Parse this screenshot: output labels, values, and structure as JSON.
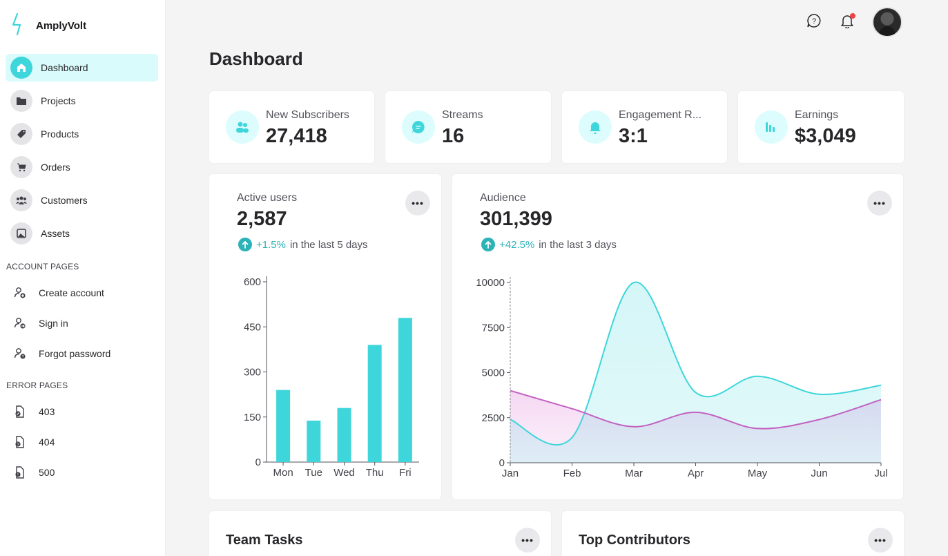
{
  "brand": {
    "name": "AmplyVolt"
  },
  "sidebar": {
    "items": [
      {
        "label": "Dashboard",
        "icon": "home-icon",
        "active": true
      },
      {
        "label": "Projects",
        "icon": "folder-icon"
      },
      {
        "label": "Products",
        "icon": "tag-icon"
      },
      {
        "label": "Orders",
        "icon": "cart-icon"
      },
      {
        "label": "Customers",
        "icon": "users-icon"
      },
      {
        "label": "Assets",
        "icon": "image-icon"
      }
    ],
    "account_title": "ACCOUNT PAGES",
    "account_items": [
      {
        "label": "Create account",
        "icon": "user-plus-icon"
      },
      {
        "label": "Sign in",
        "icon": "user-arrow-icon"
      },
      {
        "label": "Forgot password",
        "icon": "user-question-icon"
      }
    ],
    "error_title": "ERROR PAGES",
    "error_items": [
      {
        "label": "403",
        "icon": "file-lock-icon"
      },
      {
        "label": "404",
        "icon": "file-question-icon"
      },
      {
        "label": "500",
        "icon": "file-alert-icon"
      }
    ]
  },
  "header": {
    "title": "Dashboard"
  },
  "stats": [
    {
      "label": "New Subscribers",
      "value": "27,418",
      "icon": "users-icon"
    },
    {
      "label": "Streams",
      "value": "16",
      "icon": "chat-icon"
    },
    {
      "label": "Engagement R...",
      "value": "3:1",
      "icon": "bell-icon"
    },
    {
      "label": "Earnings",
      "value": "$3,049",
      "icon": "bar-chart-icon"
    }
  ],
  "active_users": {
    "label": "Active users",
    "value": "2,587",
    "trend_pct": "+1.5%",
    "trend_text": "in the last 5 days"
  },
  "audience": {
    "label": "Audience",
    "value": "301,399",
    "trend_pct": "+42.5%",
    "trend_text": "in the last 3 days"
  },
  "bottom": {
    "team_tasks": "Team Tasks",
    "top_contributors": "Top Contributors"
  },
  "more_label": "•••",
  "colors": {
    "accent": "#3ed6da",
    "magenta": "#c261c0"
  },
  "chart_data": [
    {
      "type": "bar",
      "categories": [
        "Mon",
        "Tue",
        "Wed",
        "Thu",
        "Fri"
      ],
      "values": [
        240,
        138,
        180,
        390,
        480
      ],
      "ylim": [
        0,
        600
      ],
      "yticks": [
        0,
        150,
        300,
        450,
        600
      ],
      "grid": false
    },
    {
      "type": "area",
      "categories": [
        "Jan",
        "Feb",
        "Mar",
        "Apr",
        "May",
        "Jun",
        "Jul"
      ],
      "series": [
        {
          "values": [
            2400,
            1400,
            10000,
            3900,
            4800,
            3800,
            4300
          ],
          "color": "#3ed6da"
        },
        {
          "values": [
            4000,
            3000,
            2000,
            2800,
            1900,
            2400,
            3500
          ],
          "color": "#c261c0"
        }
      ],
      "ylim": [
        0,
        10000
      ],
      "yticks": [
        0,
        2500,
        5000,
        7500,
        10000
      ],
      "grid": false
    }
  ]
}
